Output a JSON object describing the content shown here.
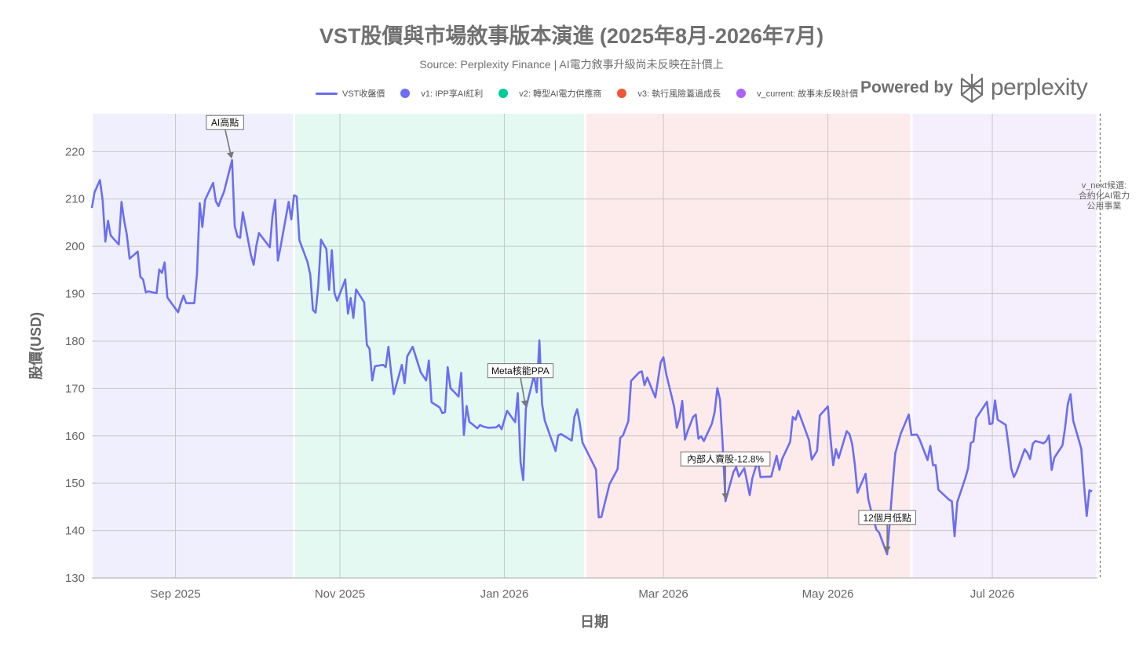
{
  "chart_data": {
    "type": "line",
    "title": "VST股價與市場敘事版本演進 (2025年8月-2026年7月)",
    "subtitle": "Source: Perplexity Finance | AI電力敘事升級尚未反映在計價上",
    "xlabel": "日期",
    "ylabel": "股價(USD)",
    "ylim": [
      130,
      228
    ],
    "yticks": [
      130,
      140,
      150,
      160,
      170,
      180,
      190,
      200,
      210,
      220
    ],
    "xlim": [
      "2025-08-01",
      "2026-07-31"
    ],
    "xticks": [
      {
        "date": "2025-09-01",
        "label": "Sep 2025"
      },
      {
        "date": "2025-11-01",
        "label": "Nov 2025"
      },
      {
        "date": "2026-01-01",
        "label": "Jan 2026"
      },
      {
        "date": "2026-03-01",
        "label": "Mar 2026"
      },
      {
        "date": "2026-05-01",
        "label": "May 2026"
      },
      {
        "date": "2026-07-01",
        "label": "Jul 2026"
      }
    ],
    "grid": true,
    "legend_position": "top",
    "line_color": "#6b6ef0",
    "series": [
      {
        "name": "VST收盤價",
        "points": [
          [
            "2025-08-01",
            208.1
          ],
          [
            "2025-08-02",
            211.4
          ],
          [
            "2025-08-04",
            214.0
          ],
          [
            "2025-08-05",
            209.8
          ],
          [
            "2025-08-06",
            201.0
          ],
          [
            "2025-08-07",
            205.4
          ],
          [
            "2025-08-08",
            202.3
          ],
          [
            "2025-08-11",
            200.4
          ],
          [
            "2025-08-12",
            209.4
          ],
          [
            "2025-08-13",
            205.4
          ],
          [
            "2025-08-14",
            202.4
          ],
          [
            "2025-08-15",
            197.4
          ],
          [
            "2025-08-18",
            198.9
          ],
          [
            "2025-08-19",
            193.6
          ],
          [
            "2025-08-20",
            193.0
          ],
          [
            "2025-08-21",
            190.3
          ],
          [
            "2025-08-22",
            190.5
          ],
          [
            "2025-08-25",
            190.1
          ],
          [
            "2025-08-26",
            195.1
          ],
          [
            "2025-08-27",
            194.4
          ],
          [
            "2025-08-28",
            196.6
          ],
          [
            "2025-08-29",
            189.2
          ],
          [
            "2025-09-02",
            186.1
          ],
          [
            "2025-09-03",
            188.0
          ],
          [
            "2025-09-04",
            189.6
          ],
          [
            "2025-09-05",
            188.0
          ],
          [
            "2025-09-08",
            188.0
          ],
          [
            "2025-09-09",
            194.1
          ],
          [
            "2025-09-10",
            209.1
          ],
          [
            "2025-09-11",
            204.1
          ],
          [
            "2025-09-12",
            209.8
          ],
          [
            "2025-09-15",
            213.4
          ],
          [
            "2025-09-16",
            209.5
          ],
          [
            "2025-09-17",
            208.5
          ],
          [
            "2025-09-18",
            210.1
          ],
          [
            "2025-09-19",
            211.5
          ],
          [
            "2025-09-22",
            218.2
          ],
          [
            "2025-09-23",
            204.3
          ],
          [
            "2025-09-24",
            202.1
          ],
          [
            "2025-09-25",
            201.8
          ],
          [
            "2025-09-26",
            207.2
          ],
          [
            "2025-09-29",
            198.2
          ],
          [
            "2025-09-30",
            196.1
          ],
          [
            "2025-10-01",
            200.1
          ],
          [
            "2025-10-02",
            202.8
          ],
          [
            "2025-10-06",
            199.8
          ],
          [
            "2025-10-07",
            206.4
          ],
          [
            "2025-10-08",
            209.8
          ],
          [
            "2025-10-09",
            197.0
          ],
          [
            "2025-10-10",
            199.9
          ],
          [
            "2025-10-13",
            209.4
          ],
          [
            "2025-10-14",
            205.7
          ],
          [
            "2025-10-15",
            210.8
          ],
          [
            "2025-10-16",
            210.5
          ],
          [
            "2025-10-17",
            201.3
          ],
          [
            "2025-10-20",
            196.7
          ],
          [
            "2025-10-21",
            194.1
          ],
          [
            "2025-10-22",
            186.6
          ],
          [
            "2025-10-23",
            186.0
          ],
          [
            "2025-10-24",
            191.8
          ],
          [
            "2025-10-25",
            201.4
          ],
          [
            "2025-10-27",
            199.4
          ],
          [
            "2025-10-28",
            190.8
          ],
          [
            "2025-10-29",
            199.2
          ],
          [
            "2025-10-30",
            190.1
          ],
          [
            "2025-10-31",
            188.5
          ],
          [
            "2025-11-03",
            193.0
          ],
          [
            "2025-11-04",
            185.8
          ],
          [
            "2025-11-05",
            189.1
          ],
          [
            "2025-11-06",
            184.9
          ],
          [
            "2025-11-07",
            190.9
          ],
          [
            "2025-11-10",
            188.2
          ],
          [
            "2025-11-11",
            179.2
          ],
          [
            "2025-11-12",
            178.4
          ],
          [
            "2025-11-13",
            171.7
          ],
          [
            "2025-11-14",
            174.7
          ],
          [
            "2025-11-17",
            175.0
          ],
          [
            "2025-11-18",
            174.5
          ],
          [
            "2025-11-19",
            178.8
          ],
          [
            "2025-11-20",
            173.4
          ],
          [
            "2025-11-21",
            168.8
          ],
          [
            "2025-11-24",
            175.0
          ],
          [
            "2025-11-25",
            171.1
          ],
          [
            "2025-11-26",
            176.8
          ],
          [
            "2025-11-28",
            178.8
          ],
          [
            "2025-12-01",
            173.4
          ],
          [
            "2025-12-03",
            171.7
          ],
          [
            "2025-12-04",
            175.9
          ],
          [
            "2025-12-05",
            167.1
          ],
          [
            "2025-12-08",
            166.0
          ],
          [
            "2025-12-09",
            164.8
          ],
          [
            "2025-12-10",
            165.0
          ],
          [
            "2025-12-11",
            174.5
          ],
          [
            "2025-12-12",
            170.1
          ],
          [
            "2025-12-15",
            168.3
          ],
          [
            "2025-12-16",
            173.3
          ],
          [
            "2025-12-17",
            160.2
          ],
          [
            "2025-12-18",
            166.3
          ],
          [
            "2025-12-19",
            163.0
          ],
          [
            "2025-12-22",
            161.6
          ],
          [
            "2025-12-23",
            162.3
          ],
          [
            "2025-12-24",
            162.0
          ],
          [
            "2025-12-26",
            161.7
          ],
          [
            "2025-12-29",
            161.8
          ],
          [
            "2025-12-30",
            162.3
          ],
          [
            "2025-12-31",
            161.4
          ],
          [
            "2026-01-02",
            165.3
          ],
          [
            "2026-01-05",
            162.9
          ],
          [
            "2026-01-06",
            169.0
          ],
          [
            "2026-01-07",
            154.5
          ],
          [
            "2026-01-08",
            150.7
          ],
          [
            "2026-01-09",
            165.8
          ],
          [
            "2026-01-12",
            172.8
          ],
          [
            "2026-01-13",
            169.2
          ],
          [
            "2026-01-14",
            180.2
          ],
          [
            "2026-01-15",
            166.7
          ],
          [
            "2026-01-16",
            163.2
          ],
          [
            "2026-01-20",
            156.8
          ],
          [
            "2026-01-21",
            160.1
          ],
          [
            "2026-01-22",
            160.4
          ],
          [
            "2026-01-26",
            159.0
          ],
          [
            "2026-01-27",
            164.0
          ],
          [
            "2026-01-28",
            165.6
          ],
          [
            "2026-01-29",
            162.7
          ],
          [
            "2026-01-30",
            158.6
          ],
          [
            "2026-02-04",
            152.9
          ],
          [
            "2026-02-05",
            142.8
          ],
          [
            "2026-02-06",
            142.9
          ],
          [
            "2026-02-09",
            149.8
          ],
          [
            "2026-02-12",
            153.0
          ],
          [
            "2026-02-13",
            159.6
          ],
          [
            "2026-02-14",
            160.1
          ],
          [
            "2026-02-16",
            163.1
          ],
          [
            "2026-02-17",
            171.6
          ],
          [
            "2026-02-20",
            173.4
          ],
          [
            "2026-02-21",
            173.6
          ],
          [
            "2026-02-22",
            170.7
          ],
          [
            "2026-02-23",
            172.3
          ],
          [
            "2026-02-26",
            168.1
          ],
          [
            "2026-02-28",
            175.5
          ],
          [
            "2026-03-01",
            176.6
          ],
          [
            "2026-03-02",
            173.2
          ],
          [
            "2026-03-05",
            166.1
          ],
          [
            "2026-03-06",
            161.7
          ],
          [
            "2026-03-07",
            163.8
          ],
          [
            "2026-03-08",
            167.4
          ],
          [
            "2026-03-09",
            159.2
          ],
          [
            "2026-03-10",
            161.0
          ],
          [
            "2026-03-12",
            164.0
          ],
          [
            "2026-03-13",
            164.5
          ],
          [
            "2026-03-14",
            159.4
          ],
          [
            "2026-03-15",
            159.9
          ],
          [
            "2026-03-16",
            158.9
          ],
          [
            "2026-03-19",
            162.6
          ],
          [
            "2026-03-20",
            165.0
          ],
          [
            "2026-03-21",
            170.1
          ],
          [
            "2026-03-22",
            167.6
          ],
          [
            "2026-03-23",
            158.1
          ],
          [
            "2026-03-24",
            146.2
          ],
          [
            "2026-03-27",
            152.4
          ],
          [
            "2026-03-28",
            153.4
          ],
          [
            "2026-03-29",
            151.4
          ],
          [
            "2026-03-31",
            153.2
          ],
          [
            "2026-04-02",
            147.5
          ],
          [
            "2026-04-03",
            151.1
          ],
          [
            "2026-04-05",
            154.8
          ],
          [
            "2026-04-06",
            151.3
          ],
          [
            "2026-04-10",
            151.4
          ],
          [
            "2026-04-12",
            155.8
          ],
          [
            "2026-04-13",
            152.8
          ],
          [
            "2026-04-14",
            155.1
          ],
          [
            "2026-04-17",
            158.7
          ],
          [
            "2026-04-18",
            164.0
          ],
          [
            "2026-04-19",
            163.4
          ],
          [
            "2026-04-20",
            165.3
          ],
          [
            "2026-04-24",
            159.1
          ],
          [
            "2026-04-25",
            155.0
          ],
          [
            "2026-04-27",
            156.8
          ],
          [
            "2026-04-28",
            164.3
          ],
          [
            "2026-05-01",
            166.2
          ],
          [
            "2026-05-02",
            159.3
          ],
          [
            "2026-05-03",
            153.8
          ],
          [
            "2026-05-04",
            157.2
          ],
          [
            "2026-05-05",
            155.3
          ],
          [
            "2026-05-08",
            161.0
          ],
          [
            "2026-05-09",
            160.4
          ],
          [
            "2026-05-10",
            158.3
          ],
          [
            "2026-05-11",
            154.0
          ],
          [
            "2026-05-12",
            148.0
          ],
          [
            "2026-05-15",
            152.0
          ],
          [
            "2026-05-16",
            146.6
          ],
          [
            "2026-05-17",
            144.3
          ],
          [
            "2026-05-19",
            140.2
          ],
          [
            "2026-05-20",
            139.6
          ],
          [
            "2026-05-23",
            135.0
          ],
          [
            "2026-05-25",
            149.5
          ],
          [
            "2026-05-26",
            156.3
          ],
          [
            "2026-05-28",
            160.4
          ],
          [
            "2026-05-31",
            164.5
          ],
          [
            "2026-06-01",
            160.2
          ],
          [
            "2026-06-03",
            160.3
          ],
          [
            "2026-06-04",
            159.3
          ],
          [
            "2026-06-07",
            154.9
          ],
          [
            "2026-06-08",
            157.9
          ],
          [
            "2026-06-09",
            153.8
          ],
          [
            "2026-06-10",
            153.8
          ],
          [
            "2026-06-11",
            148.6
          ],
          [
            "2026-06-15",
            146.5
          ],
          [
            "2026-06-16",
            146.2
          ],
          [
            "2026-06-17",
            138.8
          ],
          [
            "2026-06-18",
            146.0
          ],
          [
            "2026-06-21",
            151.1
          ],
          [
            "2026-06-22",
            153.2
          ],
          [
            "2026-06-23",
            158.5
          ],
          [
            "2026-06-24",
            158.8
          ],
          [
            "2026-06-25",
            163.7
          ],
          [
            "2026-06-29",
            167.2
          ],
          [
            "2026-06-30",
            162.5
          ],
          [
            "2026-07-01",
            162.6
          ],
          [
            "2026-07-02",
            167.5
          ],
          [
            "2026-07-03",
            163.4
          ],
          [
            "2026-07-06",
            162.3
          ],
          [
            "2026-07-07",
            158.0
          ],
          [
            "2026-07-08",
            153.2
          ],
          [
            "2026-07-09",
            151.3
          ],
          [
            "2026-07-10",
            152.4
          ],
          [
            "2026-07-13",
            157.2
          ],
          [
            "2026-07-14",
            156.4
          ],
          [
            "2026-07-15",
            155.1
          ],
          [
            "2026-07-16",
            158.3
          ],
          [
            "2026-07-17",
            158.9
          ],
          [
            "2026-07-19",
            158.6
          ],
          [
            "2026-07-20",
            158.4
          ],
          [
            "2026-07-21",
            158.9
          ],
          [
            "2026-07-22",
            160.1
          ],
          [
            "2026-07-23",
            152.8
          ],
          [
            "2026-07-24",
            155.4
          ],
          [
            "2026-07-27",
            158.0
          ],
          [
            "2026-07-28",
            161.8
          ],
          [
            "2026-07-29",
            166.7
          ],
          [
            "2026-07-30",
            168.8
          ],
          [
            "2026-07-31",
            163.2
          ],
          [
            "2026-08-03",
            157.3
          ],
          [
            "2026-08-04",
            149.8
          ],
          [
            "2026-08-05",
            143.1
          ],
          [
            "2026-08-06",
            148.5
          ],
          [
            "2026-08-07",
            148.3
          ]
        ]
      }
    ],
    "regions": [
      {
        "name": "v1: IPP享AI紅利",
        "color": "#6b6ef0",
        "start": "2025-08-01",
        "end": "2025-10-15",
        "fill": "#efeffd"
      },
      {
        "name": "v2: 轉型AI電力供應商",
        "color": "#00cc96",
        "start": "2025-10-15",
        "end": "2026-01-31",
        "fill": "#e3f9f1"
      },
      {
        "name": "v3: 執行風險蓋過成長",
        "color": "#ef553b",
        "start": "2026-01-31",
        "end": "2026-06-01",
        "fill": "#fdeaea"
      },
      {
        "name": "v_current: 故事未反映計價",
        "color": "#ab63fa",
        "start": "2026-06-01",
        "end": "2026-08-10",
        "fill": "#f5eefd"
      }
    ],
    "annotations": [
      {
        "text": "AI高點",
        "date": "2025-09-22",
        "value": 218.2
      },
      {
        "text": "Meta核能PPA",
        "date": "2026-01-09",
        "value": 165.8
      },
      {
        "text": "內部人賣股-12.8%",
        "date": "2026-03-24",
        "value": 146.2
      },
      {
        "text": "12個月低點",
        "date": "2026-05-23",
        "value": 135.0
      }
    ],
    "vline": {
      "date": "2026-08-10",
      "label_lines": [
        "v_next候選:",
        "合約化AI電力",
        "公用事業"
      ]
    }
  },
  "branding": {
    "powered_by": "Powered by",
    "brand": "perplexity"
  }
}
